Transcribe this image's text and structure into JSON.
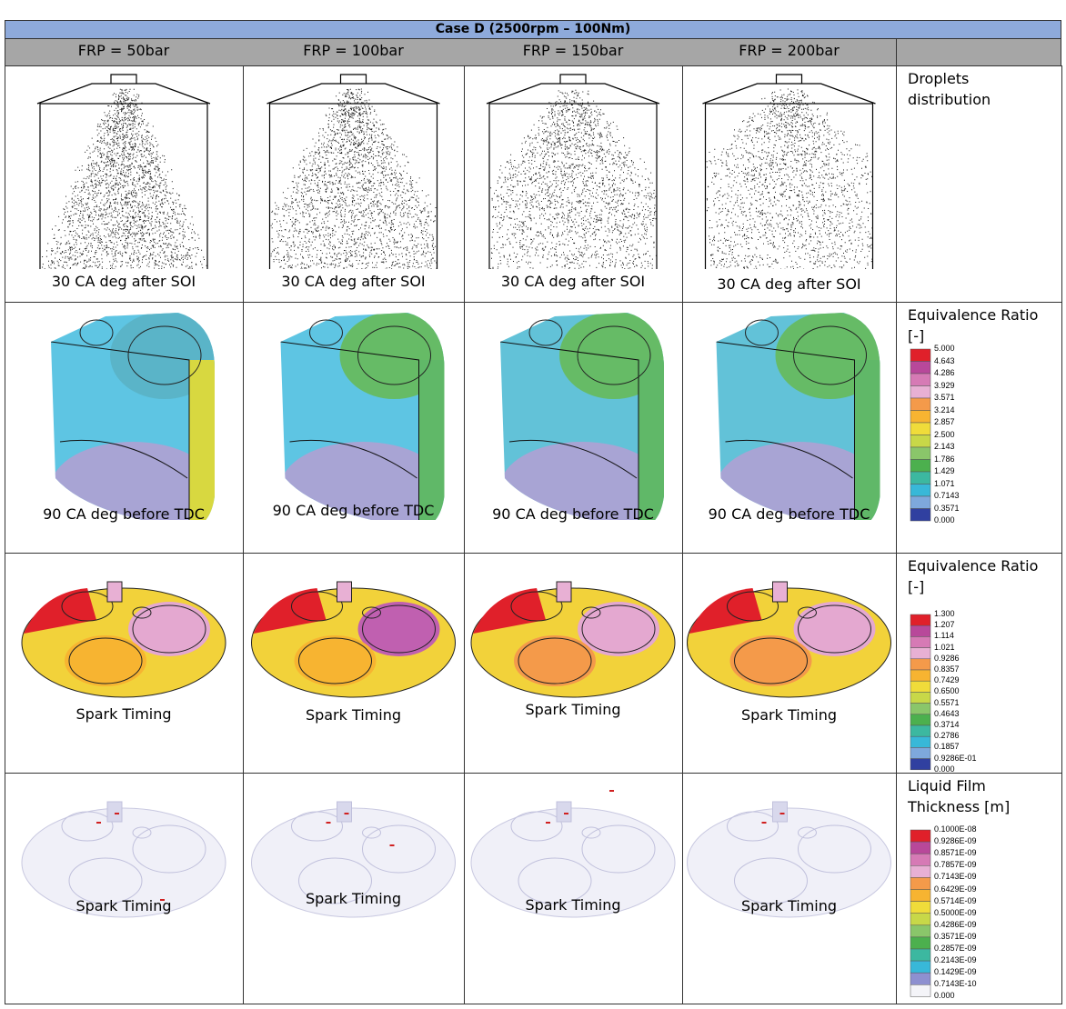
{
  "header": {
    "title": "Case D (2500rpm – 100Nm)",
    "columns": [
      "FRP = 50bar",
      "FRP = 100bar",
      "FRP = 150bar",
      "FRP = 200bar"
    ]
  },
  "rows": [
    {
      "label": "Droplets distribution",
      "captions": [
        "30 CA deg after SOI",
        "30 CA deg after SOI",
        "30 CA deg after SOI",
        "30 CA deg after SOI"
      ]
    },
    {
      "label": "Equivalence Ratio [-]",
      "captions": [
        "90 CA deg before TDC",
        "90 CA deg before TDC",
        "90 CA deg before TDC",
        "90 CA deg before TDC"
      ],
      "legend": [
        "5.000",
        "4.643",
        "4.286",
        "3.929",
        "3.571",
        "3.214",
        "2.857",
        "2.500",
        "2.143",
        "1.786",
        "1.429",
        "1.071",
        "0.7143",
        "0.3571",
        "0.000"
      ]
    },
    {
      "label": "Equivalence Ratio [-]",
      "captions": [
        "Spark Timing",
        "Spark Timing",
        "Spark Timing",
        "Spark Timing"
      ],
      "legend": [
        "1.300",
        "1.207",
        "1.114",
        "1.021",
        "0.9286",
        "0.8357",
        "0.7429",
        "0.6500",
        "0.5571",
        "0.4643",
        "0.3714",
        "0.2786",
        "0.1857",
        "0.9286E-01",
        "0.000"
      ]
    },
    {
      "label": "Liquid Film Thickness [m]",
      "captions": [
        "Spark Timing",
        "Spark Timing",
        "Spark Timing",
        "Spark Timing"
      ],
      "legend": [
        "0.1000E-08",
        "0.9286E-09",
        "0.8571E-09",
        "0.7857E-09",
        "0.7143E-09",
        "0.6429E-09",
        "0.5714E-09",
        "0.5000E-09",
        "0.4286E-09",
        "0.3571E-09",
        "0.2857E-09",
        "0.2143E-09",
        "0.1429E-09",
        "0.7143E-10",
        "0.000"
      ]
    }
  ]
}
